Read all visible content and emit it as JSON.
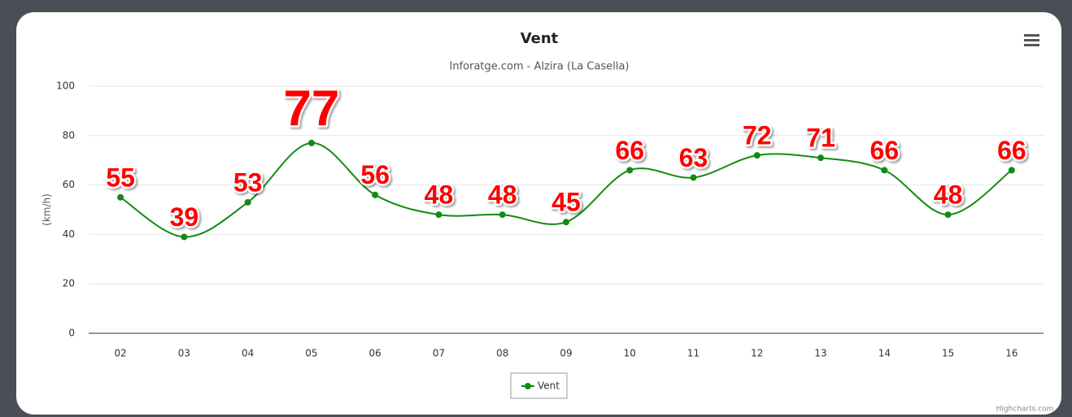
{
  "chart_data": {
    "type": "line",
    "title": "Vent",
    "subtitle": "Inforatge.com - Alzira (La Casella)",
    "y_label": "(km/h)",
    "categories": [
      "02",
      "03",
      "04",
      "05",
      "06",
      "07",
      "08",
      "09",
      "10",
      "11",
      "12",
      "13",
      "14",
      "15",
      "16"
    ],
    "series": [
      {
        "name": "Vent",
        "color": "#138a13",
        "values": [
          55,
          39,
          53,
          77,
          56,
          48,
          48,
          45,
          66,
          63,
          72,
          71,
          66,
          48,
          66
        ]
      }
    ],
    "ylim": [
      0,
      100
    ],
    "yticks": [
      0,
      20,
      40,
      60,
      80,
      100
    ],
    "grid": true,
    "label_color": "#ff0000",
    "credits": "Highcharts.com"
  }
}
